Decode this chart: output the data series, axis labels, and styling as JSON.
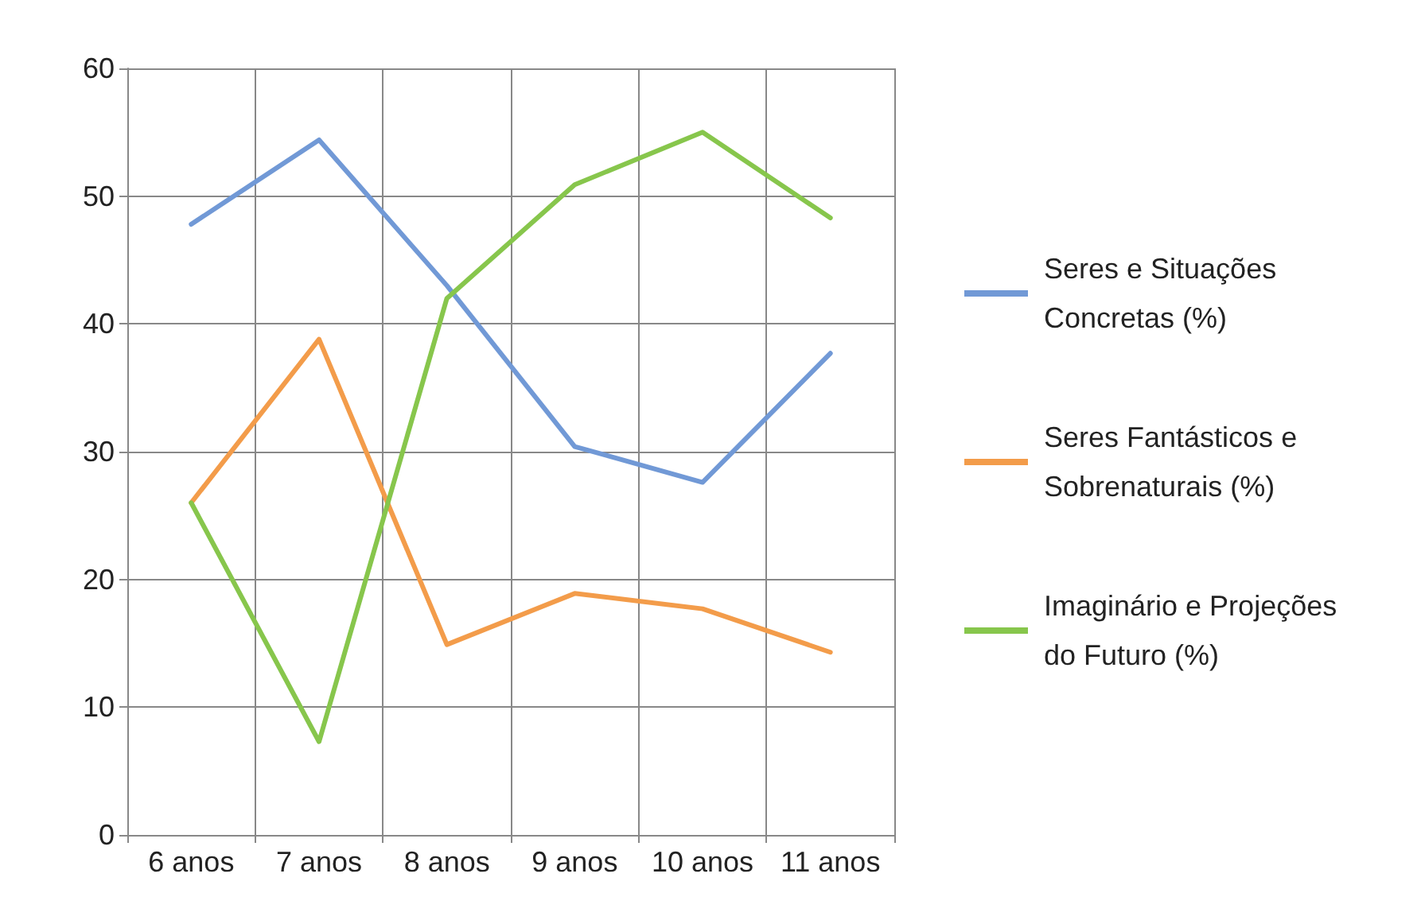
{
  "chart_data": {
    "type": "line",
    "categories": [
      "6 anos",
      "7 anos",
      "8 anos",
      "9 anos",
      "10 anos",
      "11 anos"
    ],
    "series": [
      {
        "name": "Seres e Situações Concretas (%)",
        "color": "#7199d6",
        "values": [
          47.8,
          54.4,
          43,
          30.4,
          27.6,
          37.7
        ]
      },
      {
        "name": "Seres Fantásticos e Sobrenaturais (%)",
        "color": "#f39c4a",
        "values": [
          26,
          38.8,
          14.9,
          18.9,
          17.7,
          14.3
        ]
      },
      {
        "name": "Imaginário e Projeções do Futuro (%)",
        "color": "#87c64c",
        "values": [
          26,
          7.3,
          42,
          50.9,
          55,
          48.3
        ]
      }
    ],
    "ylim": [
      0,
      60
    ],
    "yticks": [
      0,
      10,
      20,
      30,
      40,
      50,
      60
    ],
    "grid": true,
    "legend": "right",
    "marker": "none",
    "line_style": "solid"
  }
}
